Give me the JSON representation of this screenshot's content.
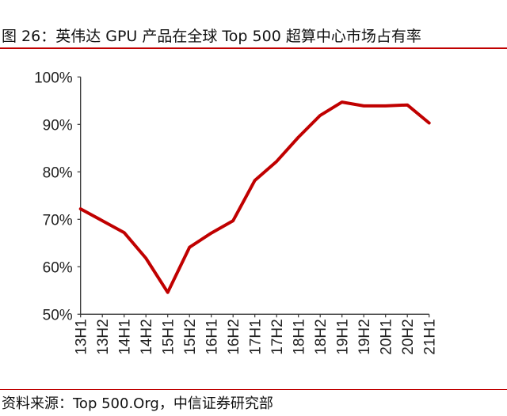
{
  "title": "图 26：英伟达 GPU 产品在全球 Top 500 超算中心市场占有率",
  "source": "资料来源：Top 500.Org，中信证券研究部",
  "colors": {
    "line": "#c00000",
    "axis": "#333333",
    "rule": "#c00000"
  },
  "chart_data": {
    "type": "line",
    "title": "图 26：英伟达 GPU 产品在全球 Top 500 超算中心市场占有率",
    "xlabel": "",
    "ylabel": "",
    "categories": [
      "13H1",
      "13H2",
      "14H1",
      "14H2",
      "15H1",
      "15H2",
      "16H1",
      "16H2",
      "17H1",
      "17H2",
      "18H1",
      "18H2",
      "19H1",
      "19H2",
      "20H1",
      "20H2",
      "21H1"
    ],
    "series": [
      {
        "name": "英伟达 GPU 市场占有率",
        "values": [
          72.2,
          69.7,
          67.2,
          61.8,
          54.6,
          64.1,
          67.1,
          69.7,
          78.2,
          82.2,
          87.3,
          91.9,
          94.7,
          93.9,
          93.9,
          94.1,
          90.3
        ]
      }
    ],
    "ylim": [
      50,
      100
    ],
    "yticks": [
      50,
      60,
      70,
      80,
      90,
      100
    ],
    "ytick_labels": [
      "50%",
      "60%",
      "70%",
      "80%",
      "90%",
      "100%"
    ],
    "grid": false,
    "legend": "none"
  }
}
